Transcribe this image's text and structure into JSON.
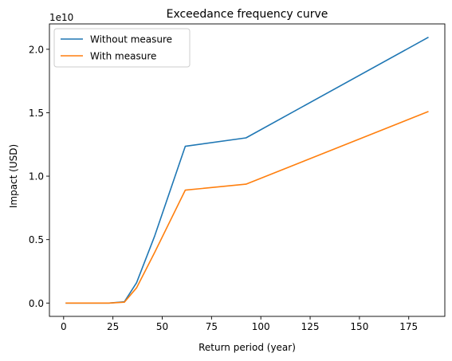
{
  "chart_data": {
    "type": "line",
    "title": "Exceedance frequency curve",
    "xlabel": "Return period (year)",
    "ylabel": "Impact (USD)",
    "y_offset_label": "1e10",
    "xlim": [
      -7.2,
      193.3
    ],
    "ylim": [
      -0.105,
      2.2
    ],
    "xticks": [
      0,
      25,
      50,
      75,
      100,
      125,
      150,
      175
    ],
    "yticks": [
      0.0,
      0.5,
      1.0,
      1.5,
      2.0
    ],
    "ytick_labels": [
      "0.0",
      "0.5",
      "1.0",
      "1.5",
      "2.0"
    ],
    "grid": false,
    "legend_position": "upper-left",
    "series": [
      {
        "name": "Without measure",
        "color": "#1f77b4",
        "x": [
          1,
          23.1,
          30.8,
          37,
          46.2,
          61.7,
          92.5,
          185
        ],
        "y": [
          0.0,
          0.0,
          0.01,
          0.16,
          0.53,
          1.235,
          1.302,
          2.095
        ]
      },
      {
        "name": "With measure",
        "color": "#ff7f0e",
        "x": [
          1,
          23.1,
          30.8,
          37,
          46.2,
          61.7,
          92.5,
          185
        ],
        "y": [
          0.0,
          0.0,
          0.007,
          0.12,
          0.4,
          0.89,
          0.937,
          1.51
        ]
      }
    ]
  }
}
